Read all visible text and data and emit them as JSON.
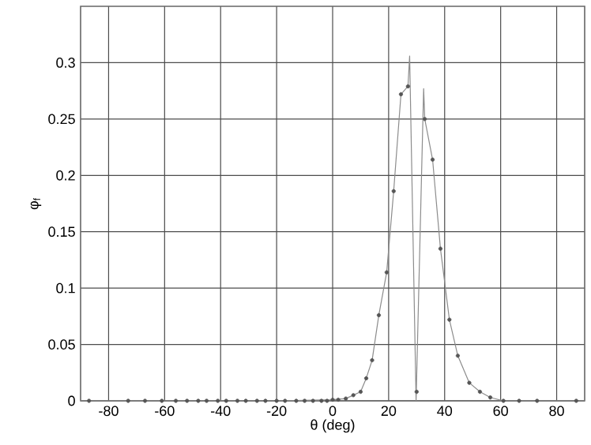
{
  "chart_data": {
    "type": "line",
    "xlabel": "θ (deg)",
    "ylabel": "φ$_{f}$",
    "xlim": [
      -90,
      90
    ],
    "ylim": [
      0,
      0.35
    ],
    "xticks": [
      -80,
      -60,
      -40,
      -20,
      0,
      20,
      40,
      60,
      80
    ],
    "yticks": [
      0,
      0.05,
      0.1,
      0.15,
      0.2,
      0.25,
      0.3
    ],
    "grid": true,
    "series": [
      {
        "type": "line",
        "color": "#8c8c8c",
        "marker": "none",
        "x": [
          -90,
          -60,
          -20,
          0,
          4.7,
          7.4,
          10,
          12,
          14.1,
          16.5,
          19.3,
          21.8,
          24.4,
          26.9,
          27.5,
          29.8,
          32.5,
          32.9,
          35.7,
          38.5,
          41.7,
          44.7,
          48.8,
          52.6,
          56.3,
          61,
          66.6,
          73,
          90
        ],
        "values": [
          0,
          0,
          0,
          0.001,
          0.002,
          0.005,
          0.008,
          0.02,
          0.036,
          0.076,
          0.114,
          0.186,
          0.272,
          0.279,
          0.306,
          0,
          0.277,
          0.25,
          0.214,
          0.135,
          0.072,
          0.04,
          0.016,
          0.008,
          0.003,
          0,
          0,
          0,
          0
        ]
      },
      {
        "type": "scatter",
        "color": "#555555",
        "marker": "circle",
        "x": [
          -87,
          -73,
          -67,
          -61,
          -56,
          -52,
          -48,
          -45,
          -41,
          -38,
          -34,
          -31,
          -27,
          -24,
          -20,
          -17,
          -13,
          -10,
          -7,
          -4,
          -2,
          0,
          2,
          4.7,
          7.4,
          10,
          12,
          14.1,
          16.5,
          19.3,
          21.8,
          24.4,
          26.9,
          30,
          32.9,
          35.7,
          38.5,
          41.7,
          44.7,
          48.8,
          52.6,
          56.3,
          61,
          66.6,
          73,
          87
        ],
        "values": [
          0,
          0,
          0,
          0,
          0,
          0,
          0,
          0,
          0,
          0,
          0,
          0,
          0,
          0,
          0,
          0,
          0,
          0,
          0,
          0,
          0,
          0.001,
          0.001,
          0.002,
          0.005,
          0.008,
          0.02,
          0.036,
          0.076,
          0.114,
          0.186,
          0.272,
          0.279,
          0.008,
          0.25,
          0.214,
          0.135,
          0.072,
          0.04,
          0.016,
          0.008,
          0.003,
          0,
          0,
          0,
          0
        ]
      }
    ]
  }
}
